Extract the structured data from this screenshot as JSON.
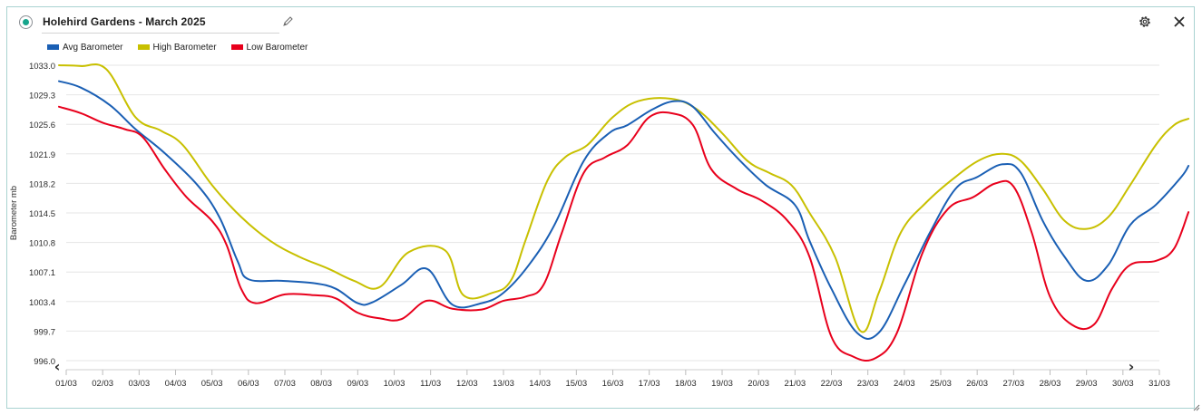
{
  "header": {
    "title": "Holehird Gardens - March 2025",
    "status_icon": "status-dot-icon",
    "edit_icon": "pencil-icon",
    "settings_icon": "gear-icon",
    "close_icon": "close-icon"
  },
  "colors": {
    "accent": "#17a58c",
    "frame_border": "#a9d3d1",
    "avg": "#1a5fb4",
    "high": "#c8c000",
    "low": "#e8001c",
    "grid": "#e6e6e6"
  },
  "chart_data": {
    "type": "line",
    "title": "",
    "xlabel": "",
    "ylabel": "Barometer mb",
    "ylim": [
      996.0,
      1033.0
    ],
    "y_ticks": [
      "1033.0",
      "1029.3",
      "1025.6",
      "1021.9",
      "1018.2",
      "1014.5",
      "1010.8",
      "1007.1",
      "1003.4",
      "999.7",
      "996.0"
    ],
    "categories": [
      "01/03",
      "02/03",
      "03/03",
      "04/03",
      "05/03",
      "06/03",
      "07/03",
      "08/03",
      "09/03",
      "10/03",
      "11/03",
      "12/03",
      "13/03",
      "14/03",
      "15/03",
      "16/03",
      "17/03",
      "18/03",
      "19/03",
      "20/03",
      "21/03",
      "22/03",
      "23/03",
      "24/03",
      "25/03",
      "26/03",
      "27/03",
      "28/03",
      "29/03",
      "30/03",
      "31/03"
    ],
    "grid": "horizontal",
    "legend_position": "top-left",
    "nav": {
      "prev": "‹",
      "next": "›"
    },
    "series": [
      {
        "name": "Avg Barometer",
        "color": "#1a5fb4",
        "points": [
          [
            0.4,
            1031.0
          ],
          [
            1.0,
            1030.2
          ],
          [
            1.8,
            1028.0
          ],
          [
            2.5,
            1025.0
          ],
          [
            3.3,
            1022.0
          ],
          [
            4.2,
            1018.0
          ],
          [
            4.8,
            1014.0
          ],
          [
            5.3,
            1008.5
          ],
          [
            5.6,
            1006.2
          ],
          [
            6.5,
            1006.0
          ],
          [
            7.4,
            1005.7
          ],
          [
            8.0,
            1005.0
          ],
          [
            8.6,
            1003.2
          ],
          [
            9.0,
            1003.3
          ],
          [
            9.8,
            1005.5
          ],
          [
            10.5,
            1007.5
          ],
          [
            11.2,
            1003.0
          ],
          [
            12.0,
            1003.2
          ],
          [
            12.6,
            1004.5
          ],
          [
            13.3,
            1008.0
          ],
          [
            14.0,
            1013.0
          ],
          [
            14.8,
            1021.0
          ],
          [
            15.5,
            1024.5
          ],
          [
            16.0,
            1025.5
          ],
          [
            16.7,
            1027.5
          ],
          [
            17.3,
            1028.5
          ],
          [
            17.8,
            1027.8
          ],
          [
            18.4,
            1024.5
          ],
          [
            19.1,
            1021.0
          ],
          [
            19.8,
            1018.0
          ],
          [
            20.6,
            1015.5
          ],
          [
            21.0,
            1011.0
          ],
          [
            21.6,
            1005.0
          ],
          [
            22.3,
            999.5
          ],
          [
            22.9,
            999.5
          ],
          [
            23.6,
            1005.5
          ],
          [
            24.3,
            1012.0
          ],
          [
            25.0,
            1017.5
          ],
          [
            25.6,
            1019.0
          ],
          [
            26.3,
            1020.6
          ],
          [
            26.8,
            1019.5
          ],
          [
            27.4,
            1013.5
          ],
          [
            28.0,
            1009.0
          ],
          [
            28.6,
            1006.0
          ],
          [
            29.2,
            1008.0
          ],
          [
            29.8,
            1013.0
          ],
          [
            30.5,
            1015.5
          ],
          [
            31.2,
            1019.0
          ],
          [
            31.4,
            1020.4
          ]
        ]
      },
      {
        "name": "High Barometer",
        "color": "#c8c000",
        "points": [
          [
            0.4,
            1033.0
          ],
          [
            1.0,
            1032.9
          ],
          [
            1.7,
            1032.5
          ],
          [
            2.5,
            1026.5
          ],
          [
            3.2,
            1024.8
          ],
          [
            3.8,
            1023.0
          ],
          [
            4.6,
            1018.0
          ],
          [
            5.4,
            1014.0
          ],
          [
            6.2,
            1011.0
          ],
          [
            7.0,
            1009.0
          ],
          [
            7.8,
            1007.5
          ],
          [
            8.5,
            1006.0
          ],
          [
            9.2,
            1005.2
          ],
          [
            10.0,
            1009.6
          ],
          [
            11.0,
            1009.8
          ],
          [
            11.5,
            1004.2
          ],
          [
            12.3,
            1004.5
          ],
          [
            12.8,
            1006.0
          ],
          [
            13.2,
            1011.0
          ],
          [
            13.8,
            1018.5
          ],
          [
            14.3,
            1021.5
          ],
          [
            14.9,
            1023.0
          ],
          [
            15.6,
            1026.5
          ],
          [
            16.3,
            1028.5
          ],
          [
            17.2,
            1028.8
          ],
          [
            17.9,
            1027.5
          ],
          [
            18.6,
            1024.5
          ],
          [
            19.3,
            1021.0
          ],
          [
            19.9,
            1019.5
          ],
          [
            20.5,
            1018.0
          ],
          [
            21.0,
            1014.5
          ],
          [
            21.7,
            1009.0
          ],
          [
            22.4,
            999.7
          ],
          [
            22.9,
            1004.5
          ],
          [
            23.5,
            1012.0
          ],
          [
            24.2,
            1015.8
          ],
          [
            25.0,
            1019.0
          ],
          [
            25.7,
            1021.2
          ],
          [
            26.3,
            1021.9
          ],
          [
            26.8,
            1021.0
          ],
          [
            27.4,
            1017.5
          ],
          [
            28.0,
            1013.5
          ],
          [
            28.6,
            1012.5
          ],
          [
            29.2,
            1014.0
          ],
          [
            29.8,
            1018.0
          ],
          [
            30.5,
            1023.0
          ],
          [
            31.0,
            1025.5
          ],
          [
            31.4,
            1026.3
          ]
        ]
      },
      {
        "name": "Low Barometer",
        "color": "#e8001c",
        "points": [
          [
            0.4,
            1027.8
          ],
          [
            1.0,
            1027.0
          ],
          [
            1.6,
            1025.8
          ],
          [
            2.2,
            1025.0
          ],
          [
            2.7,
            1024.0
          ],
          [
            3.3,
            1020.0
          ],
          [
            3.9,
            1016.5
          ],
          [
            4.6,
            1013.5
          ],
          [
            5.0,
            1010.5
          ],
          [
            5.4,
            1005.0
          ],
          [
            5.8,
            1003.2
          ],
          [
            6.6,
            1004.3
          ],
          [
            7.4,
            1004.2
          ],
          [
            8.0,
            1003.8
          ],
          [
            8.6,
            1002.0
          ],
          [
            9.2,
            1001.3
          ],
          [
            9.8,
            1001.2
          ],
          [
            10.5,
            1003.5
          ],
          [
            11.2,
            1002.5
          ],
          [
            12.0,
            1002.4
          ],
          [
            12.6,
            1003.5
          ],
          [
            13.2,
            1004.0
          ],
          [
            13.7,
            1005.5
          ],
          [
            14.2,
            1012.0
          ],
          [
            14.8,
            1019.5
          ],
          [
            15.4,
            1021.5
          ],
          [
            16.0,
            1023.0
          ],
          [
            16.6,
            1026.5
          ],
          [
            17.2,
            1027.0
          ],
          [
            17.8,
            1025.5
          ],
          [
            18.3,
            1020.0
          ],
          [
            19.0,
            1017.5
          ],
          [
            19.7,
            1016.0
          ],
          [
            20.4,
            1013.5
          ],
          [
            21.0,
            1009.0
          ],
          [
            21.6,
            999.0
          ],
          [
            22.2,
            996.5
          ],
          [
            22.8,
            996.3
          ],
          [
            23.4,
            999.5
          ],
          [
            24.1,
            1009.5
          ],
          [
            24.8,
            1015.0
          ],
          [
            25.5,
            1016.5
          ],
          [
            26.1,
            1018.2
          ],
          [
            26.6,
            1017.8
          ],
          [
            27.1,
            1012.0
          ],
          [
            27.6,
            1004.0
          ],
          [
            28.2,
            1000.5
          ],
          [
            28.8,
            1000.5
          ],
          [
            29.3,
            1005.0
          ],
          [
            29.8,
            1008.0
          ],
          [
            30.5,
            1008.5
          ],
          [
            31.0,
            1010.0
          ],
          [
            31.4,
            1014.6
          ]
        ]
      }
    ]
  }
}
